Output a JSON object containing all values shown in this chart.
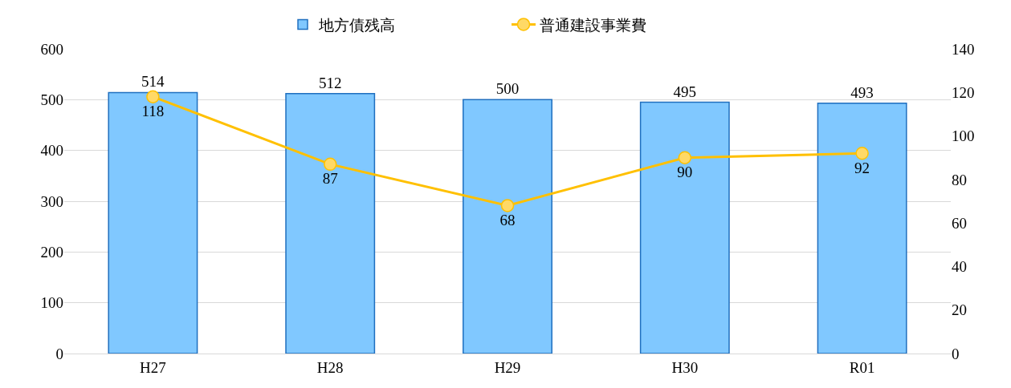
{
  "chart_data": {
    "type": "bar",
    "categories": [
      "H27",
      "H28",
      "H29",
      "H30",
      "R01"
    ],
    "series": [
      {
        "name": "地方債残高",
        "color": "#80c8ff",
        "values": [
          514,
          512,
          500,
          495,
          493
        ]
      },
      {
        "name": "普通建設事業費",
        "type": "line",
        "axis": "y2",
        "color": "#ffc000",
        "marker": "circle",
        "values": [
          118,
          87,
          68,
          90,
          92
        ]
      }
    ],
    "ylim": [
      0,
      600
    ],
    "yticks": [
      0,
      100,
      200,
      300,
      400,
      500,
      600
    ],
    "y2lim": [
      0,
      140
    ],
    "y2ticks": [
      0,
      20,
      40,
      60,
      80,
      100,
      120,
      140
    ],
    "grid": "y",
    "legend": "top",
    "data_labels": true
  }
}
